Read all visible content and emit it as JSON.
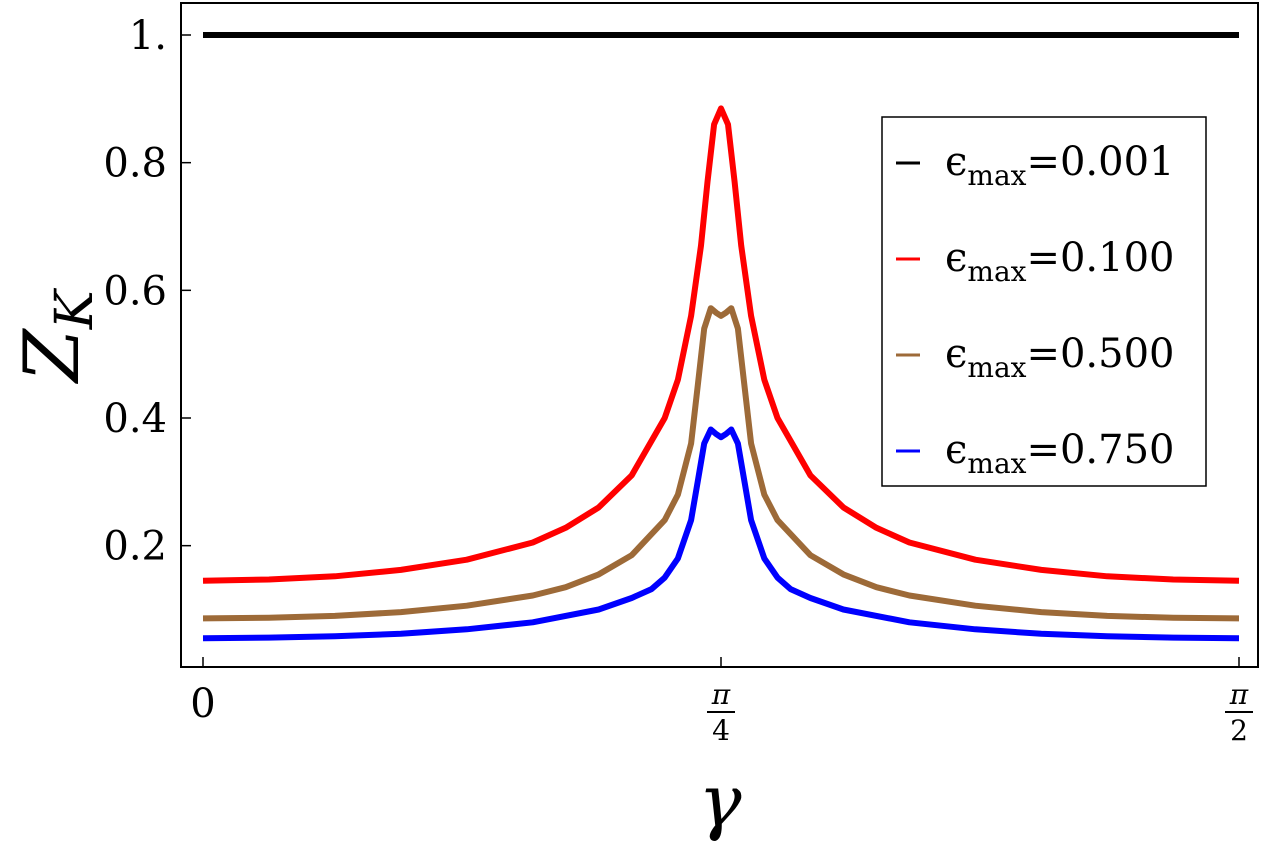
{
  "chart_data": {
    "type": "line",
    "xlabel": "γ",
    "ylabel_main": "Z",
    "ylabel_sub": "K",
    "xlim": [
      0,
      1.5708
    ],
    "ylim": [
      0.0,
      1.05
    ],
    "x_ticks": [
      {
        "value": 0,
        "label": "0"
      },
      {
        "value": 0.7854,
        "num": "π",
        "den": "4"
      },
      {
        "value": 1.5708,
        "num": "π",
        "den": "2"
      }
    ],
    "y_ticks": [
      {
        "value": 0.2,
        "label": "0.2"
      },
      {
        "value": 0.4,
        "label": "0.4"
      },
      {
        "value": 0.6,
        "label": "0.6"
      },
      {
        "value": 0.8,
        "label": "0.8"
      },
      {
        "value": 1.0,
        "label": "1."
      }
    ],
    "legend_position": "upper-right",
    "series": [
      {
        "name": "ϵmax=0.001",
        "symbol": "ϵ",
        "sub": "max",
        "value_text": "=0.001",
        "color": "#000000",
        "x": [
          0,
          0.3,
          0.6,
          0.7854,
          1.0,
          1.3,
          1.5708
        ],
        "y": [
          1.0,
          1.0,
          1.0,
          1.0,
          1.0,
          1.0,
          1.0
        ]
      },
      {
        "name": "ϵmax=0.100",
        "symbol": "ϵ",
        "sub": "max",
        "value_text": "=0.100",
        "color": "#ff0000",
        "x": [
          0,
          0.1,
          0.2,
          0.3,
          0.4,
          0.5,
          0.55,
          0.6,
          0.65,
          0.7,
          0.72,
          0.74,
          0.755,
          0.765,
          0.775,
          0.7854,
          0.796,
          0.806,
          0.816,
          0.831,
          0.851,
          0.871,
          0.921,
          0.971,
          1.021,
          1.071,
          1.171,
          1.271,
          1.371,
          1.471,
          1.5708
        ],
        "y": [
          0.145,
          0.147,
          0.152,
          0.162,
          0.178,
          0.205,
          0.228,
          0.26,
          0.31,
          0.4,
          0.46,
          0.56,
          0.67,
          0.77,
          0.86,
          0.885,
          0.86,
          0.77,
          0.67,
          0.56,
          0.46,
          0.4,
          0.31,
          0.26,
          0.228,
          0.205,
          0.178,
          0.162,
          0.152,
          0.147,
          0.145
        ]
      },
      {
        "name": "ϵmax=0.500",
        "symbol": "ϵ",
        "sub": "max",
        "value_text": "=0.500",
        "color": "#9d6a38",
        "x": [
          0,
          0.1,
          0.2,
          0.3,
          0.4,
          0.5,
          0.55,
          0.6,
          0.65,
          0.7,
          0.72,
          0.74,
          0.75,
          0.76,
          0.77,
          0.778,
          0.7854,
          0.793,
          0.801,
          0.811,
          0.821,
          0.831,
          0.851,
          0.871,
          0.921,
          0.971,
          1.021,
          1.071,
          1.171,
          1.271,
          1.371,
          1.471,
          1.5708
        ],
        "y": [
          0.086,
          0.087,
          0.09,
          0.096,
          0.106,
          0.122,
          0.135,
          0.155,
          0.185,
          0.24,
          0.28,
          0.36,
          0.45,
          0.54,
          0.572,
          0.565,
          0.56,
          0.565,
          0.572,
          0.54,
          0.45,
          0.36,
          0.28,
          0.24,
          0.185,
          0.155,
          0.135,
          0.122,
          0.106,
          0.096,
          0.09,
          0.087,
          0.086
        ]
      },
      {
        "name": "ϵmax=0.750",
        "symbol": "ϵ",
        "sub": "max",
        "value_text": "=0.750",
        "color": "#0000ff",
        "x": [
          0,
          0.1,
          0.2,
          0.3,
          0.4,
          0.5,
          0.6,
          0.65,
          0.68,
          0.7,
          0.72,
          0.74,
          0.75,
          0.76,
          0.77,
          0.778,
          0.7854,
          0.793,
          0.801,
          0.811,
          0.821,
          0.831,
          0.851,
          0.871,
          0.891,
          0.921,
          0.971,
          1.071,
          1.171,
          1.271,
          1.371,
          1.471,
          1.5708
        ],
        "y": [
          0.055,
          0.056,
          0.058,
          0.062,
          0.069,
          0.08,
          0.1,
          0.118,
          0.132,
          0.15,
          0.18,
          0.24,
          0.3,
          0.36,
          0.382,
          0.375,
          0.37,
          0.375,
          0.382,
          0.36,
          0.3,
          0.24,
          0.18,
          0.15,
          0.132,
          0.118,
          0.1,
          0.08,
          0.069,
          0.062,
          0.058,
          0.056,
          0.055
        ]
      }
    ]
  }
}
